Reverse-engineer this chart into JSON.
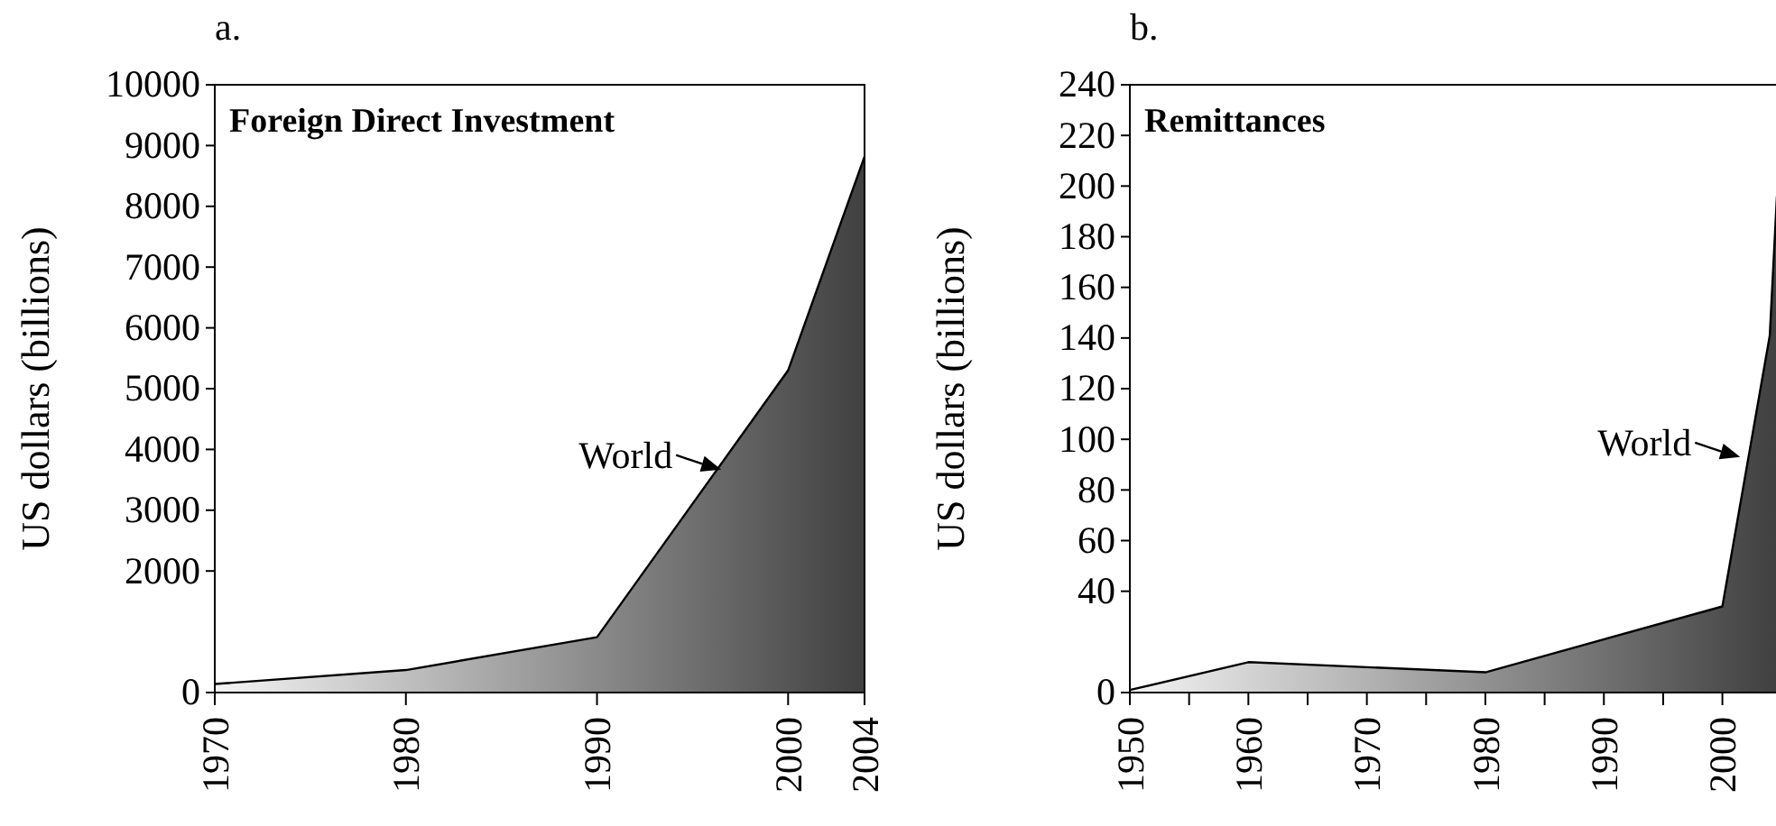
{
  "chart_data": [
    {
      "type": "area",
      "title": "Foreign Direct Investment",
      "ylabel": "US dollars (billions)",
      "annotations": [
        "a.",
        {
          "text": "World",
          "x": 1996.5,
          "y": 3670
        }
      ],
      "x": [
        1970,
        1980,
        1990,
        2000,
        2004
      ],
      "series": [
        {
          "color": "#404040",
          "values": [
            140,
            370,
            910,
            5300,
            8820
          ]
        }
      ],
      "xlim": [
        1970,
        2004
      ],
      "xticks": [
        1970,
        1980,
        1990,
        2000,
        2004
      ],
      "ylim": [
        0,
        10000
      ],
      "yticks": [
        0,
        2000,
        3000,
        4000,
        5000,
        6000,
        7000,
        8000,
        9000,
        10000
      ],
      "grid": false,
      "legend": false
    },
    {
      "type": "area",
      "title": "Remittances",
      "ylabel": "US dollars (billions)",
      "annotations": [
        "b.",
        {
          "text": "World",
          "x": 2001.5,
          "y": 93
        }
      ],
      "x": [
        1950,
        1960,
        1980,
        2000,
        2004,
        2004.6
      ],
      "series": [
        {
          "color": "#404040",
          "values": [
            1,
            12,
            8,
            34,
            141,
            196
          ]
        }
      ],
      "xlim": [
        1950,
        2004.6
      ],
      "xticks": [
        1950,
        {
          "value": 1955,
          "label": null
        },
        1960,
        {
          "value": 1965,
          "label": null
        },
        1970,
        {
          "value": 1975,
          "label": null
        },
        1980,
        {
          "value": 1985,
          "label": null
        },
        1990,
        {
          "value": 1995,
          "label": null
        },
        2000
      ],
      "ylim": [
        0,
        240
      ],
      "yticks": [
        0,
        40,
        60,
        80,
        100,
        120,
        140,
        160,
        180,
        200,
        220,
        240
      ],
      "grid": false,
      "legend": false
    }
  ]
}
